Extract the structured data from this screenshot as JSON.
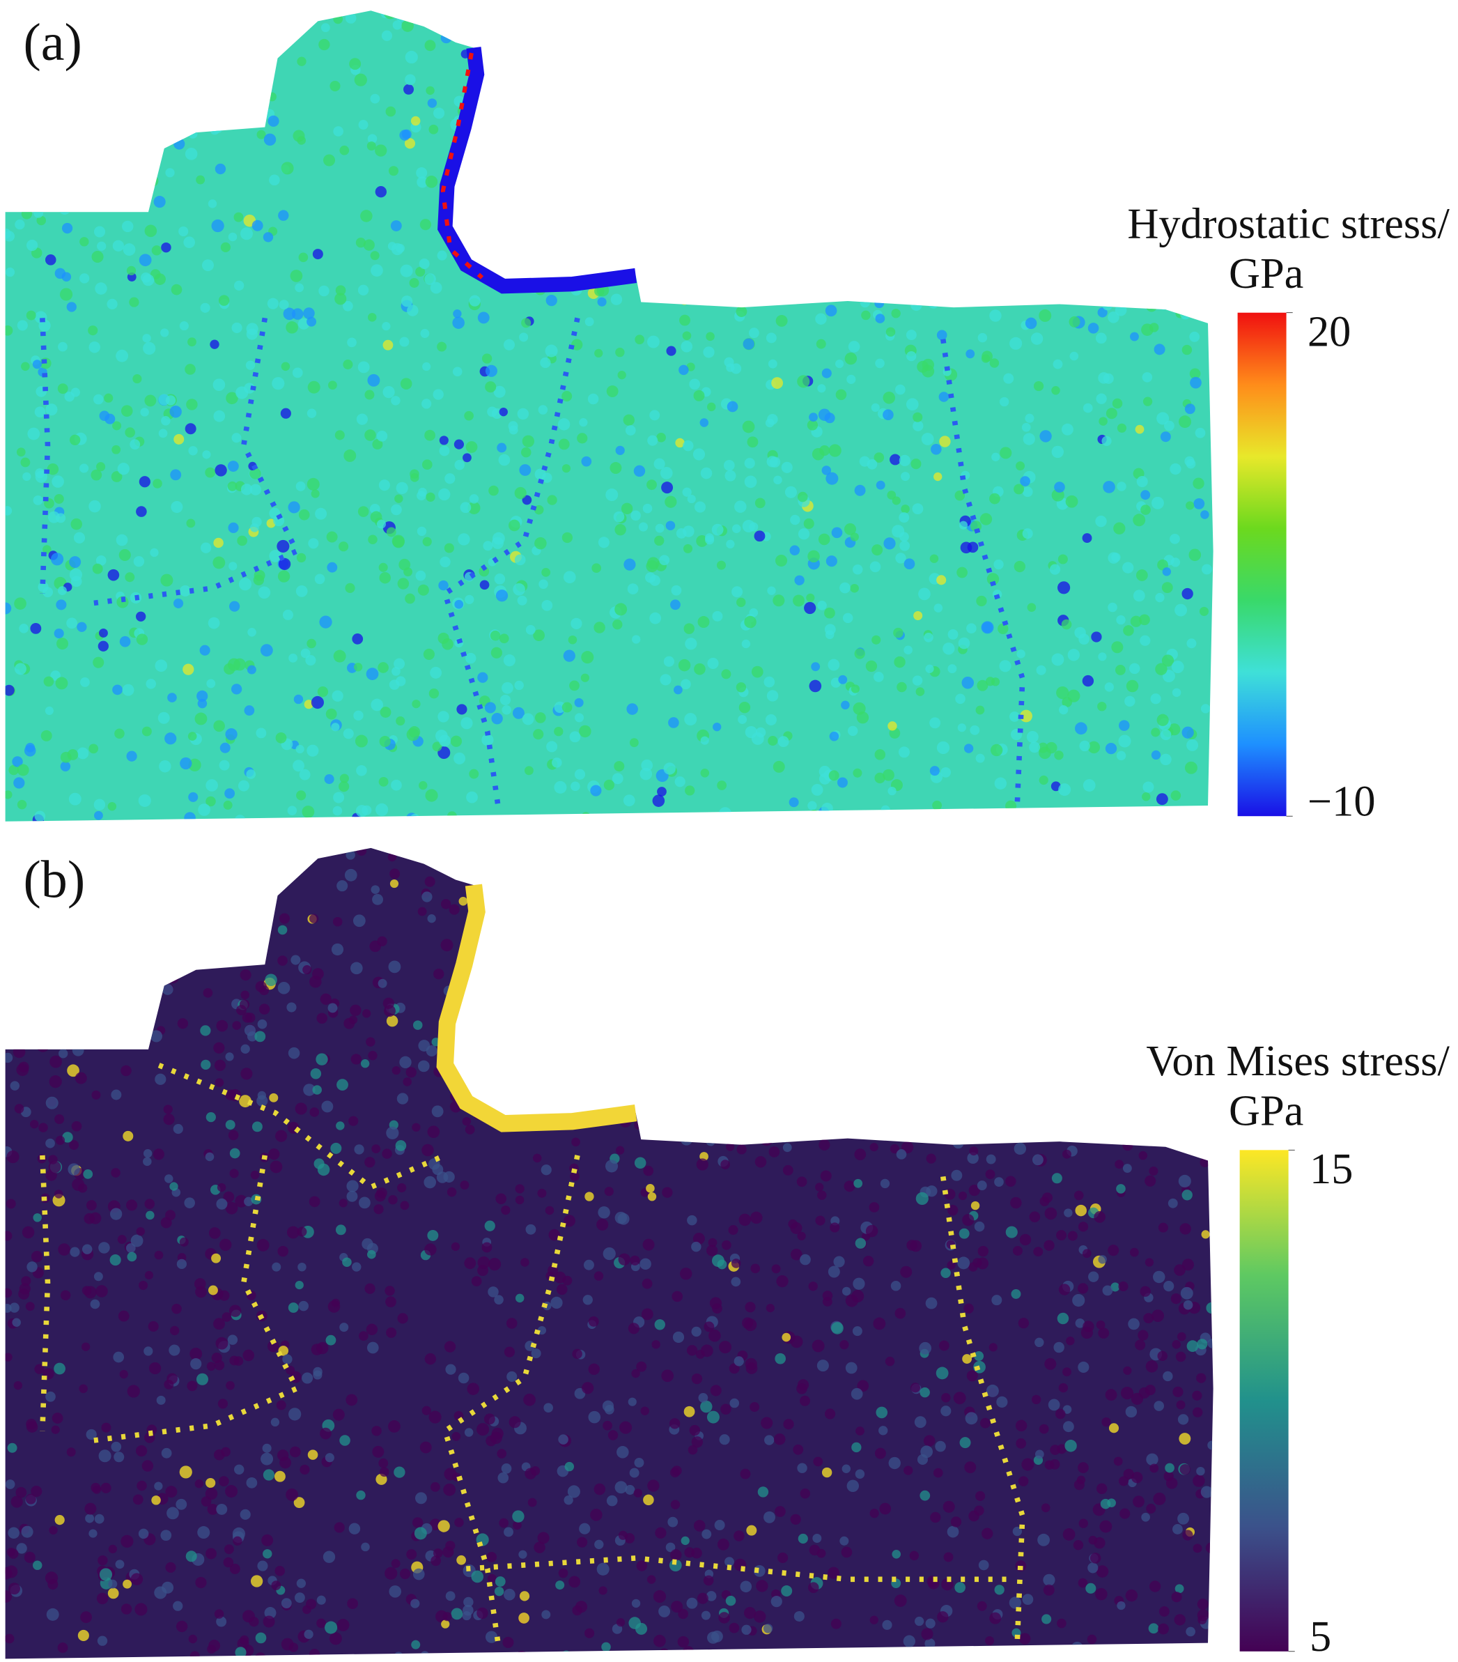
{
  "panels": [
    {
      "label": "(a)",
      "colorbar": {
        "title": [
          "Hydrostatic stress/",
          "GPa"
        ],
        "lim": [
          -10,
          20
        ],
        "ticks": [
          20,
          {
            "value": -10,
            "label": "−10"
          }
        ],
        "colors": [
          "#1a10e6",
          "#1e90ff",
          "#3fe0d8",
          "#39d96a",
          "#6cd91e",
          "#e8e82a",
          "#ff8c1a",
          "#f01010"
        ]
      }
    },
    {
      "label": "(b)",
      "colorbar": {
        "title": [
          "Von Mises stress/",
          "GPa"
        ],
        "lim": [
          5,
          15
        ],
        "ticks": [
          15,
          5
        ],
        "colors": [
          "#440154",
          "#3b528b",
          "#21918c",
          "#5ec962",
          "#fde725"
        ]
      }
    }
  ]
}
